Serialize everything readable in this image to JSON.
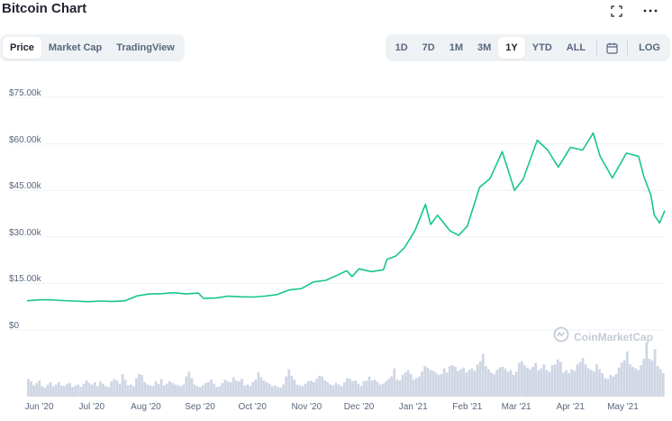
{
  "title": "Bitcoin Chart",
  "left_tabs": [
    {
      "label": "Price",
      "active": true
    },
    {
      "label": "Market Cap",
      "active": false
    },
    {
      "label": "TradingView",
      "active": false
    }
  ],
  "range_tabs": [
    {
      "label": "1D",
      "active": false
    },
    {
      "label": "7D",
      "active": false
    },
    {
      "label": "1M",
      "active": false
    },
    {
      "label": "3M",
      "active": false
    },
    {
      "label": "1Y",
      "active": true
    },
    {
      "label": "YTD",
      "active": false
    },
    {
      "label": "ALL",
      "active": false
    }
  ],
  "log_label": "LOG",
  "watermark": "CoinMarketCap",
  "icons": {
    "expand": "expand-icon",
    "more": "more-icon",
    "calendar": "calendar-icon",
    "watermark_logo": "coinmarketcap-logo-icon"
  },
  "colors": {
    "line": "#16c784",
    "volume": "#cfd6e4",
    "grid": "#eff2f5",
    "text": "#58667e"
  },
  "chart_data": {
    "type": "line",
    "series": [
      {
        "values": [
          [
            "2020-05-25",
            9400
          ],
          [
            "2020-06-01",
            9700
          ],
          [
            "2020-06-08",
            9700
          ],
          [
            "2020-06-15",
            9450
          ],
          [
            "2020-06-22",
            9300
          ],
          [
            "2020-06-29",
            9100
          ],
          [
            "2020-07-06",
            9300
          ],
          [
            "2020-07-13",
            9200
          ],
          [
            "2020-07-20",
            9400
          ],
          [
            "2020-07-27",
            11000
          ],
          [
            "2020-08-03",
            11600
          ],
          [
            "2020-08-10",
            11700
          ],
          [
            "2020-08-17",
            12000
          ],
          [
            "2020-08-24",
            11600
          ],
          [
            "2020-08-31",
            11900
          ],
          [
            "2020-09-03",
            10200
          ],
          [
            "2020-09-10",
            10300
          ],
          [
            "2020-09-17",
            10900
          ],
          [
            "2020-09-24",
            10700
          ],
          [
            "2020-10-01",
            10600
          ],
          [
            "2020-10-08",
            10900
          ],
          [
            "2020-10-15",
            11400
          ],
          [
            "2020-10-22",
            12900
          ],
          [
            "2020-10-29",
            13300
          ],
          [
            "2020-11-05",
            15500
          ],
          [
            "2020-11-12",
            16000
          ],
          [
            "2020-11-19",
            17800
          ],
          [
            "2020-11-24",
            19100
          ],
          [
            "2020-11-27",
            17200
          ],
          [
            "2020-12-01",
            19700
          ],
          [
            "2020-12-08",
            18800
          ],
          [
            "2020-12-15",
            19400
          ],
          [
            "2020-12-17",
            22800
          ],
          [
            "2020-12-22",
            23800
          ],
          [
            "2020-12-27",
            26500
          ],
          [
            "2021-01-02",
            32000
          ],
          [
            "2021-01-08",
            40500
          ],
          [
            "2021-01-11",
            34000
          ],
          [
            "2021-01-15",
            37000
          ],
          [
            "2021-01-22",
            32000
          ],
          [
            "2021-01-27",
            30500
          ],
          [
            "2021-02-01",
            33500
          ],
          [
            "2021-02-08",
            46000
          ],
          [
            "2021-02-14",
            48800
          ],
          [
            "2021-02-21",
            57500
          ],
          [
            "2021-02-28",
            45000
          ],
          [
            "2021-03-05",
            48700
          ],
          [
            "2021-03-13",
            61200
          ],
          [
            "2021-03-19",
            58000
          ],
          [
            "2021-03-25",
            52500
          ],
          [
            "2021-04-01",
            58900
          ],
          [
            "2021-04-08",
            58000
          ],
          [
            "2021-04-14",
            63500
          ],
          [
            "2021-04-18",
            56000
          ],
          [
            "2021-04-25",
            49000
          ],
          [
            "2021-05-03",
            57000
          ],
          [
            "2021-05-10",
            56000
          ],
          [
            "2021-05-13",
            49500
          ],
          [
            "2021-05-17",
            43500
          ],
          [
            "2021-05-19",
            37000
          ],
          [
            "2021-05-22",
            34500
          ],
          [
            "2021-05-25",
            38500
          ]
        ]
      }
    ],
    "volume": [
      22,
      19,
      14,
      17,
      20,
      13,
      11,
      15,
      18,
      13,
      15,
      18,
      14,
      13,
      16,
      17,
      12,
      14,
      15,
      12,
      16,
      20,
      17,
      15,
      18,
      13,
      19,
      16,
      13,
      12,
      19,
      22,
      20,
      16,
      28,
      21,
      14,
      15,
      13,
      23,
      28,
      27,
      18,
      15,
      14,
      13,
      19,
      16,
      22,
      14,
      16,
      19,
      17,
      15,
      14,
      13,
      15,
      25,
      31,
      23,
      15,
      13,
      12,
      14,
      17,
      18,
      21,
      16,
      12,
      13,
      17,
      21,
      19,
      18,
      24,
      20,
      19,
      22,
      14,
      15,
      13,
      18,
      21,
      30,
      24,
      20,
      18,
      16,
      13,
      14,
      12,
      11,
      15,
      25,
      34,
      26,
      21,
      15,
      14,
      13,
      16,
      19,
      20,
      18,
      22,
      26,
      25,
      20,
      18,
      15,
      14,
      17,
      15,
      13,
      18,
      23,
      22,
      19,
      20,
      16,
      13,
      19,
      20,
      25,
      20,
      21,
      18,
      15,
      16,
      19,
      22,
      25,
      35,
      21,
      20,
      27,
      30,
      33,
      28,
      21,
      23,
      25,
      31,
      38,
      36,
      33,
      32,
      30,
      27,
      28,
      35,
      30,
      38,
      39,
      37,
      32,
      34,
      36,
      30,
      33,
      35,
      32,
      40,
      44,
      53,
      38,
      34,
      30,
      28,
      33,
      36,
      37,
      35,
      31,
      33,
      27,
      31,
      42,
      44,
      39,
      36,
      34,
      37,
      42,
      33,
      35,
      40,
      33,
      31,
      39,
      40,
      46,
      43,
      30,
      33,
      29,
      34,
      32,
      40,
      43,
      48,
      40,
      35,
      33,
      31,
      40,
      34,
      29,
      23,
      22,
      27,
      25,
      28,
      36,
      42,
      45,
      56,
      40,
      37,
      35,
      33,
      39,
      47,
      67,
      47,
      45,
      59,
      38,
      34,
      29
    ],
    "y_ticks": [
      "$75.00k",
      "$60.00k",
      "$45.00k",
      "$30.00k",
      "$15.00k",
      "$0"
    ],
    "x_ticks": [
      "Jun '20",
      "Jul '20",
      "Aug '20",
      "Sep '20",
      "Oct '20",
      "Nov '20",
      "Dec '20",
      "Jan '21",
      "Feb '21",
      "Mar '21",
      "Apr '21",
      "May '21"
    ],
    "ylim": [
      0,
      75000
    ],
    "xlim": [
      "2020-05-25",
      "2021-05-25"
    ]
  }
}
